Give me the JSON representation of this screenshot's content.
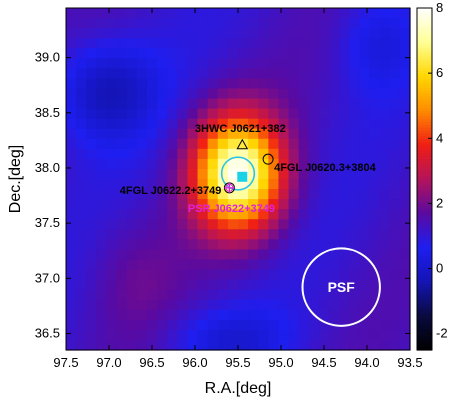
{
  "chart_data": {
    "type": "heatmap",
    "xlabel": "R.A.[deg]",
    "ylabel": "Dec.[deg]",
    "xlim": [
      97.5,
      93.5
    ],
    "ylim": [
      36.35,
      39.45
    ],
    "x_ticks": [
      "97.5",
      "97.0",
      "96.5",
      "96.0",
      "95.5",
      "95.0",
      "94.5",
      "94.0",
      "93.5"
    ],
    "y_ticks": [
      "36.5",
      "37.0",
      "37.5",
      "38.0",
      "38.5",
      "39.0"
    ],
    "colorbar": {
      "range": [
        -2.5,
        8
      ],
      "ticks": [
        "-2",
        "0",
        "2",
        "4",
        "6",
        "8"
      ],
      "colormap": [
        "#000000",
        "#0a0a40",
        "#1414b4",
        "#1e1ef0",
        "#5a0aa0",
        "#b4145a",
        "#f01e14",
        "#ff8c00",
        "#ffd700",
        "#ffff96",
        "#ffffff"
      ]
    },
    "peak": {
      "ra": 95.5,
      "dec": 37.95,
      "value": 8.0
    },
    "sources": [
      {
        "name": "3HWC J0621+382",
        "ra": 95.45,
        "dec": 38.21,
        "marker": "triangle",
        "label_color": "#000000"
      },
      {
        "name": "4FGL J0620.3+3804",
        "ra": 95.15,
        "dec": 38.08,
        "marker": "circle",
        "label_color": "#000000"
      },
      {
        "name": "4FGL J0622.2+3749",
        "ra": 95.6,
        "dec": 37.82,
        "marker": "circle",
        "label_color": "#000000"
      },
      {
        "name": "PSR J0622+3749",
        "ra": 95.6,
        "dec": 37.82,
        "marker": "cross",
        "label_color": "#e020e0"
      }
    ],
    "extension": {
      "ra": 95.5,
      "dec": 37.95,
      "radius_deg": 0.19,
      "color": "#2ec4e6"
    },
    "centroid": {
      "ra": 95.45,
      "dec": 37.92,
      "marker": "square",
      "color": "#19d2e6"
    },
    "psf": {
      "label": "PSF",
      "ra": 94.3,
      "dec": 36.92,
      "radius_deg": 0.45
    }
  }
}
